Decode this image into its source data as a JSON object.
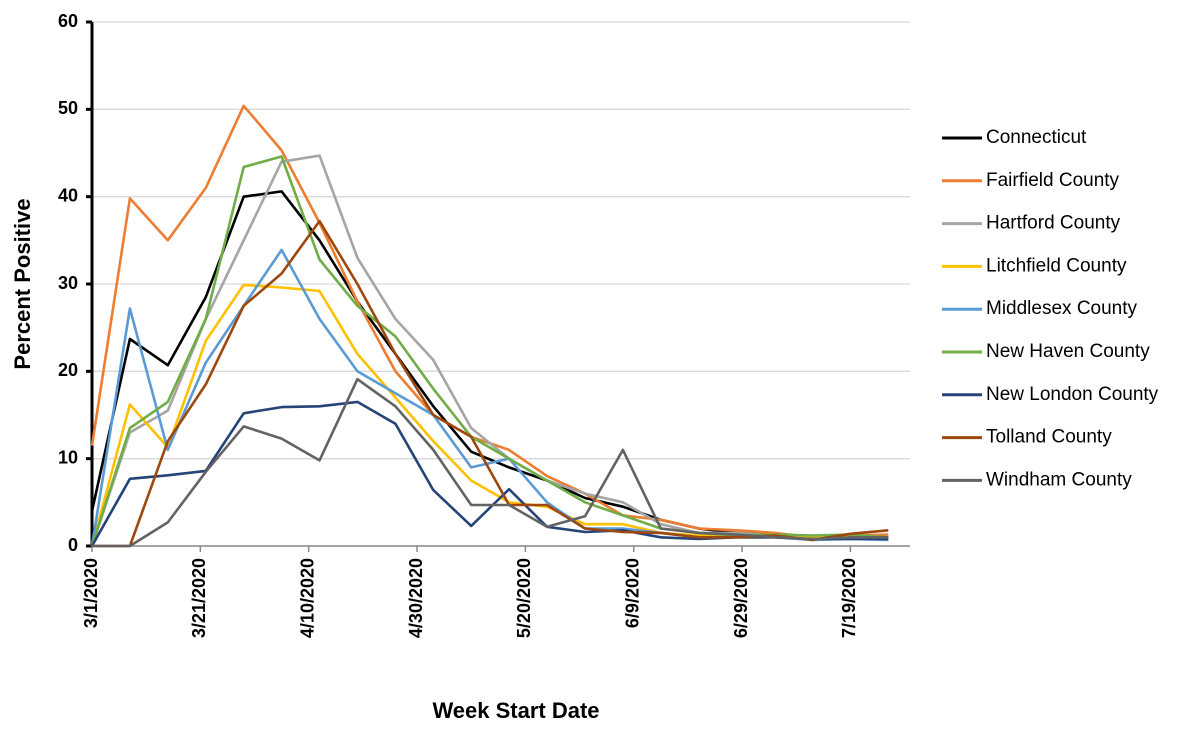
{
  "chart_data": {
    "type": "line",
    "x_label": "Week Start Date",
    "y_label": "Percent Positive",
    "x": [
      "3/1/2020",
      "3/8/2020",
      "3/15/2020",
      "3/22/2020",
      "3/29/2020",
      "4/5/2020",
      "4/12/2020",
      "4/19/2020",
      "4/26/2020",
      "5/3/2020",
      "5/10/2020",
      "5/17/2020",
      "5/24/2020",
      "5/31/2020",
      "6/7/2020",
      "6/14/2020",
      "6/21/2020",
      "6/28/2020",
      "7/5/2020",
      "7/12/2020",
      "7/19/2020",
      "7/26/2020"
    ],
    "xlim": [
      "3/1/2020",
      "7/30/2020"
    ],
    "xticks": [
      "3/1/2020",
      "3/21/2020",
      "4/10/2020",
      "4/30/2020",
      "5/20/2020",
      "6/9/2020",
      "6/29/2020",
      "7/19/2020"
    ],
    "ylim": [
      0,
      60
    ],
    "yticks": [
      0,
      10,
      20,
      30,
      40,
      50,
      60
    ],
    "grid": true,
    "legend": "right",
    "series": [
      {
        "name": "Connecticut",
        "color": "#000000",
        "values": [
          4,
          23.7,
          20.7,
          28.5,
          40,
          40.6,
          35,
          28,
          22,
          16,
          10.8,
          9,
          7.5,
          5.5,
          4.5,
          3,
          2,
          1.5,
          1.3,
          1,
          1,
          1
        ]
      },
      {
        "name": "Fairfield County",
        "color": "#ED7D31",
        "values": [
          11.5,
          39.8,
          35,
          41,
          50.4,
          45.3,
          37,
          28,
          20,
          15,
          12.5,
          11,
          8,
          6,
          3.5,
          3,
          2,
          1.8,
          1.5,
          1,
          1.2,
          1.3
        ]
      },
      {
        "name": "Hartford County",
        "color": "#A5A5A5",
        "values": [
          0,
          13,
          15.5,
          26,
          35,
          44,
          44.7,
          33,
          26,
          21.3,
          13.5,
          10,
          7.5,
          6,
          5,
          2.5,
          1.5,
          1.5,
          1.2,
          1,
          1,
          1
        ]
      },
      {
        "name": "Litchfield County",
        "color": "#FFC000",
        "values": [
          0,
          16.2,
          11.3,
          23.5,
          29.9,
          29.6,
          29.2,
          22,
          17,
          12,
          7.5,
          5,
          4.5,
          2.5,
          2.5,
          1.5,
          1.2,
          1,
          1,
          1,
          1,
          1
        ]
      },
      {
        "name": "Middlesex County",
        "color": "#5B9BD5",
        "values": [
          0,
          27.2,
          11,
          21,
          27.5,
          33.9,
          26,
          20,
          17.5,
          15,
          9,
          10,
          5,
          2,
          2,
          1.5,
          1,
          1,
          1,
          0.7,
          0.8,
          0.7
        ]
      },
      {
        "name": "New Haven County",
        "color": "#70AD47",
        "values": [
          0,
          13.5,
          16.5,
          26,
          43.4,
          44.6,
          32.8,
          27.5,
          24,
          18,
          12.5,
          10,
          7.5,
          5,
          3.5,
          2,
          1.5,
          1.2,
          1.3,
          1.2,
          1.3,
          1
        ]
      },
      {
        "name": "New London County",
        "color": "#264478",
        "values": [
          0,
          7.7,
          8.1,
          8.6,
          15.2,
          15.9,
          16,
          16.5,
          14,
          6.4,
          2.3,
          6.5,
          2.2,
          1.6,
          1.8,
          1,
          0.8,
          1,
          1,
          0.8,
          0.8,
          0.8
        ]
      },
      {
        "name": "Tolland County",
        "color": "#9E480E",
        "values": [
          0,
          0,
          12,
          18.5,
          27.5,
          31.2,
          37.2,
          30,
          22,
          15,
          12.5,
          4.7,
          4.7,
          2,
          1.6,
          1.5,
          1,
          1,
          1.2,
          0.7,
          1.4,
          1.8
        ]
      },
      {
        "name": "Windham County",
        "color": "#636363",
        "values": [
          0,
          0,
          2.7,
          8.5,
          13.7,
          12.3,
          9.8,
          19.1,
          16,
          11,
          4.7,
          4.7,
          2.2,
          3.4,
          11,
          2,
          1.5,
          1.3,
          1,
          0.8,
          1,
          1
        ]
      }
    ]
  }
}
